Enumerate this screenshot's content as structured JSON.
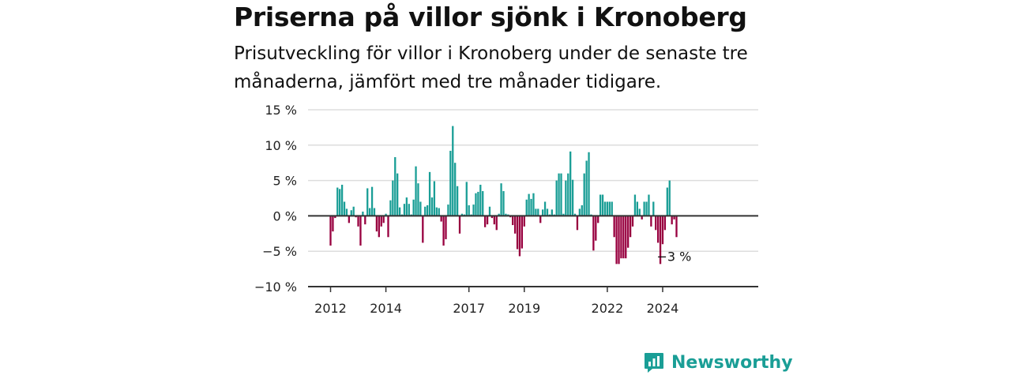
{
  "chart_data": {
    "type": "bar",
    "title": "Priserna på villor sjönk i Kronoberg",
    "subtitle": "Prisutveckling för villor i Kronoberg under de senaste tre månaderna, jämfört med tre månader tidigare.",
    "x_start": "2012-01",
    "x_end": "2025-02",
    "ylim": [
      -10,
      15
    ],
    "y_ticks": [
      {
        "value": 15,
        "label": "15 %"
      },
      {
        "value": 10,
        "label": "10 %"
      },
      {
        "value": 5,
        "label": "5 %"
      },
      {
        "value": 0,
        "label": "0 %"
      },
      {
        "value": -5,
        "label": "−5 %"
      },
      {
        "value": -10,
        "label": "−10 %"
      }
    ],
    "x_ticks": [
      {
        "year": 2012,
        "label": "2012"
      },
      {
        "year": 2014,
        "label": "2014"
      },
      {
        "year": 2017,
        "label": "2017"
      },
      {
        "year": 2019,
        "label": "2019"
      },
      {
        "year": 2022,
        "label": "2022"
      },
      {
        "year": 2024,
        "label": "2024"
      }
    ],
    "grid": true,
    "colors": {
      "positive": "#1a9e96",
      "negative": "#98003f",
      "grid": "#dddddd",
      "zero_line": "#333333",
      "axis": "#333333"
    },
    "end_label": "−3 %",
    "values": [
      -4.2,
      -2.2,
      -0.3,
      4.0,
      3.8,
      4.4,
      2.0,
      1.0,
      -1.0,
      0.8,
      1.3,
      -0.2,
      -1.5,
      -4.2,
      0.6,
      -1.2,
      3.9,
      1.1,
      4.1,
      1.1,
      -2.2,
      -3.0,
      -1.5,
      -1.0,
      0.3,
      -3.0,
      2.2,
      5.0,
      8.3,
      6.0,
      1.2,
      0.2,
      1.7,
      2.6,
      1.7,
      0.2,
      2.3,
      7.0,
      4.6,
      2.0,
      -3.8,
      1.3,
      1.5,
      6.2,
      2.6,
      4.9,
      1.2,
      1.1,
      -0.8,
      -4.2,
      -3.3,
      1.6,
      9.2,
      12.7,
      7.5,
      4.2,
      -2.5,
      0.3,
      0.2,
      4.8,
      1.5,
      0.2,
      1.6,
      3.2,
      3.4,
      4.4,
      3.5,
      -1.6,
      -1.2,
      1.3,
      -0.3,
      -1.2,
      -2.0,
      0.3,
      4.6,
      3.5,
      0.3,
      0.2,
      -0.2,
      -1.3,
      -2.5,
      -4.7,
      -5.7,
      -4.6,
      -1.5,
      2.3,
      3.1,
      2.4,
      3.2,
      1.0,
      1.0,
      -1.0,
      0.9,
      2.0,
      1.0,
      0.2,
      0.9,
      0.2,
      5.0,
      6.0,
      6.0,
      0.3,
      5.0,
      6.0,
      9.1,
      5.1,
      0.3,
      -2.0,
      1.0,
      1.5,
      6.0,
      7.8,
      9.0,
      0.2,
      -4.9,
      -3.5,
      -1.0,
      3.0,
      3.0,
      2.0,
      2.0,
      2.0,
      2.0,
      -3.0,
      -6.8,
      -6.8,
      -6.0,
      -6.0,
      -6.0,
      -4.5,
      -3.0,
      -1.5,
      3.0,
      2.0,
      1.0,
      -0.5,
      2.0,
      2.0,
      3.0,
      -1.5,
      2.0,
      -2.0,
      -3.8,
      -6.8,
      -4.0,
      -2.0,
      4.0,
      5.0,
      -1.2,
      -0.5,
      -3.0
    ]
  },
  "brand": {
    "name": "Newsworthy",
    "icon": "newsworthy-logo-icon",
    "color": "#1a9e96"
  }
}
